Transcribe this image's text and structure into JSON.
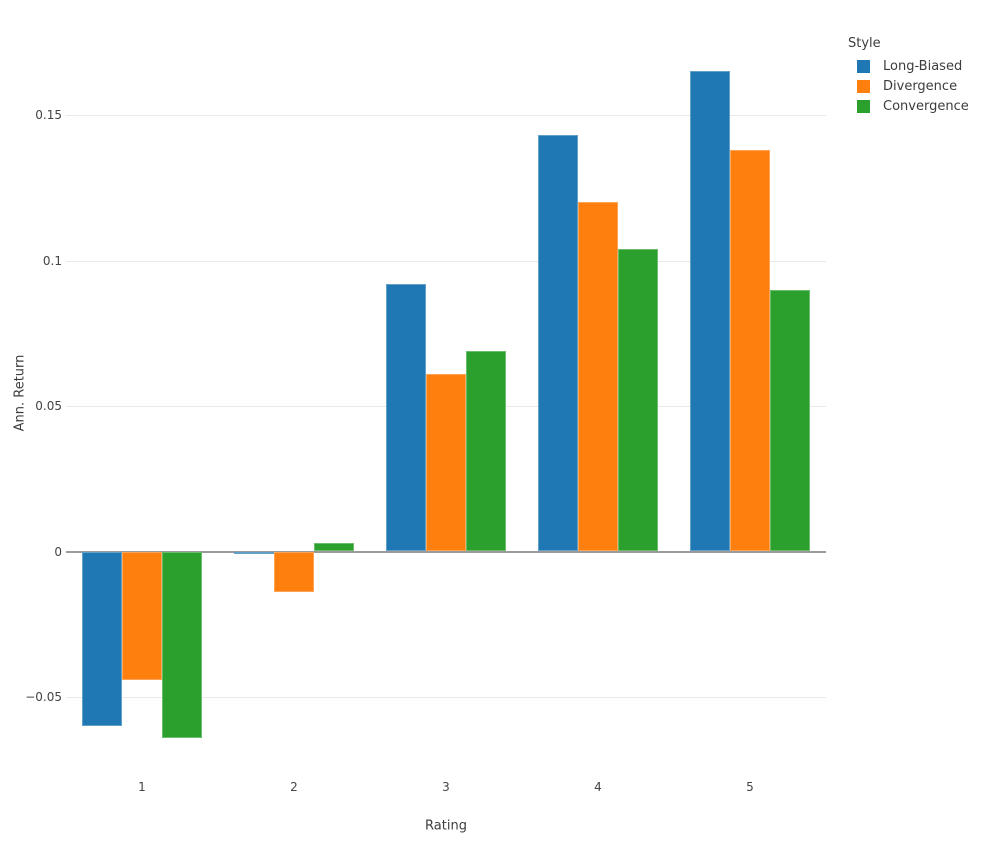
{
  "chart_data": {
    "type": "bar",
    "title": "",
    "xlabel": "Rating",
    "ylabel": "Ann. Return",
    "categories": [
      "1",
      "2",
      "3",
      "4",
      "5"
    ],
    "series": [
      {
        "name": "Long-Biased",
        "color": "#1f77b4",
        "values": [
          -0.06,
          -0.001,
          0.092,
          0.143,
          0.165
        ]
      },
      {
        "name": "Divergence",
        "color": "#ff7f0e",
        "values": [
          -0.044,
          -0.014,
          0.061,
          0.12,
          0.138
        ]
      },
      {
        "name": "Convergence",
        "color": "#2ca02c",
        "values": [
          -0.064,
          0.003,
          0.069,
          0.104,
          0.09
        ]
      }
    ],
    "yticks": [
      {
        "value": -0.05,
        "label": "−0.05"
      },
      {
        "value": 0,
        "label": "0"
      },
      {
        "value": 0.05,
        "label": "0.05"
      },
      {
        "value": 0.1,
        "label": "0.1"
      },
      {
        "value": 0.15,
        "label": "0.15"
      }
    ],
    "ylim": [
      -0.075,
      0.186
    ],
    "grid": true,
    "legend": {
      "title": "Style",
      "position": "top-right"
    },
    "colors": {
      "gridline": "#e9e9e9",
      "zeroline": "#9b9b9b",
      "label_text": "#444444",
      "background": "#ffffff"
    }
  }
}
